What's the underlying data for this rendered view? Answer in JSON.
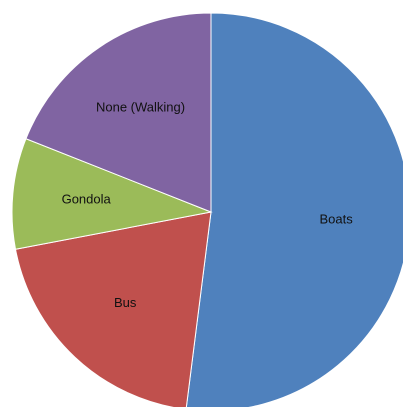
{
  "chart_data": {
    "type": "pie",
    "title": "",
    "slices": [
      {
        "label": "Boats",
        "value": 52,
        "color": "#4f81bd"
      },
      {
        "label": "Bus",
        "value": 20,
        "color": "#c0504d"
      },
      {
        "label": "Gondola",
        "value": 9,
        "color": "#9bbb59"
      },
      {
        "label": "None (Walking)",
        "value": 19,
        "color": "#8064a2"
      }
    ],
    "start_angle_degrees": 0,
    "direction": "clockwise",
    "legend": "none",
    "data_labels": "category names inside slices"
  }
}
